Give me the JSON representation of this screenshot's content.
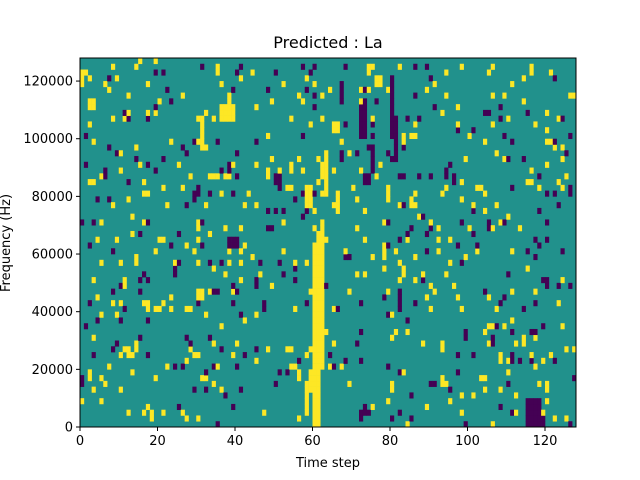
{
  "chart_data": {
    "type": "heatmap",
    "title": "Predicted : La",
    "xlabel": "Time step",
    "ylabel": "Frequency (Hz)",
    "xlim": [
      0,
      128
    ],
    "ylim": [
      0,
      128000
    ],
    "x_ticks": [
      0,
      20,
      40,
      60,
      80,
      100,
      120
    ],
    "y_ticks": [
      0,
      20000,
      40000,
      60000,
      80000,
      100000,
      120000
    ],
    "y_tick_labels": [
      "0",
      "20000",
      "40000",
      "60000",
      "80000",
      "100000",
      "120000"
    ],
    "n_time_steps": 128,
    "n_freq_bins": 64,
    "bin_hz": 2000,
    "levels": {
      "low": -1,
      "mid": 0,
      "high": 1
    },
    "colors": {
      "low": "#440154",
      "mid": "#21918c",
      "high": "#fde725"
    },
    "background_level": 0,
    "cells": {
      "high": [
        [
          59,
          6,
          2,
          4
        ],
        [
          60,
          0,
          2,
          32
        ],
        [
          61,
          0,
          1,
          34
        ],
        [
          62,
          10,
          1,
          26
        ],
        [
          58,
          2,
          1,
          6
        ],
        [
          63,
          40,
          1,
          8
        ],
        [
          58,
          38,
          2,
          4
        ],
        [
          36,
          53,
          4,
          3
        ],
        [
          31,
          48,
          1,
          6
        ],
        [
          30,
          22,
          2,
          2
        ],
        [
          2,
          55,
          2,
          2
        ],
        [
          0,
          60,
          1,
          2
        ],
        [
          11,
          24,
          1,
          2
        ],
        [
          76,
          59,
          2,
          2
        ],
        [
          72,
          51,
          1,
          2
        ],
        [
          65,
          51,
          2,
          2
        ],
        [
          79,
          39,
          1,
          3
        ],
        [
          85,
          38,
          1,
          2
        ],
        [
          66,
          37,
          1,
          4
        ],
        [
          62,
          43,
          1,
          3
        ],
        [
          54,
          44,
          1,
          2
        ],
        [
          30,
          34,
          1,
          2
        ],
        [
          114,
          14,
          1,
          2
        ],
        [
          38,
          56,
          1,
          2
        ],
        [
          17,
          20,
          1,
          2
        ]
      ],
      "low": [
        [
          115,
          0,
          4,
          5
        ],
        [
          118,
          0,
          2,
          2
        ],
        [
          80,
          50,
          1,
          10
        ],
        [
          81,
          46,
          1,
          8
        ],
        [
          72,
          50,
          2,
          6
        ],
        [
          75,
          44,
          1,
          5
        ],
        [
          82,
          20,
          1,
          3
        ],
        [
          50,
          42,
          2,
          2
        ],
        [
          67,
          56,
          1,
          4
        ],
        [
          73,
          42,
          2,
          2
        ],
        [
          45,
          24,
          1,
          2
        ],
        [
          38,
          31,
          3,
          2
        ],
        [
          96,
          42,
          1,
          2
        ],
        [
          105,
          34,
          1,
          2
        ],
        [
          7,
          48,
          1,
          1
        ],
        [
          29,
          39,
          1,
          2
        ],
        [
          47,
          20,
          1,
          2
        ],
        [
          120,
          24,
          1,
          2
        ],
        [
          111,
          11,
          1,
          2
        ],
        [
          99,
          15,
          1,
          2
        ]
      ]
    },
    "random_seed": 7,
    "random_density": {
      "high": 0.05,
      "low": 0.035
    }
  }
}
